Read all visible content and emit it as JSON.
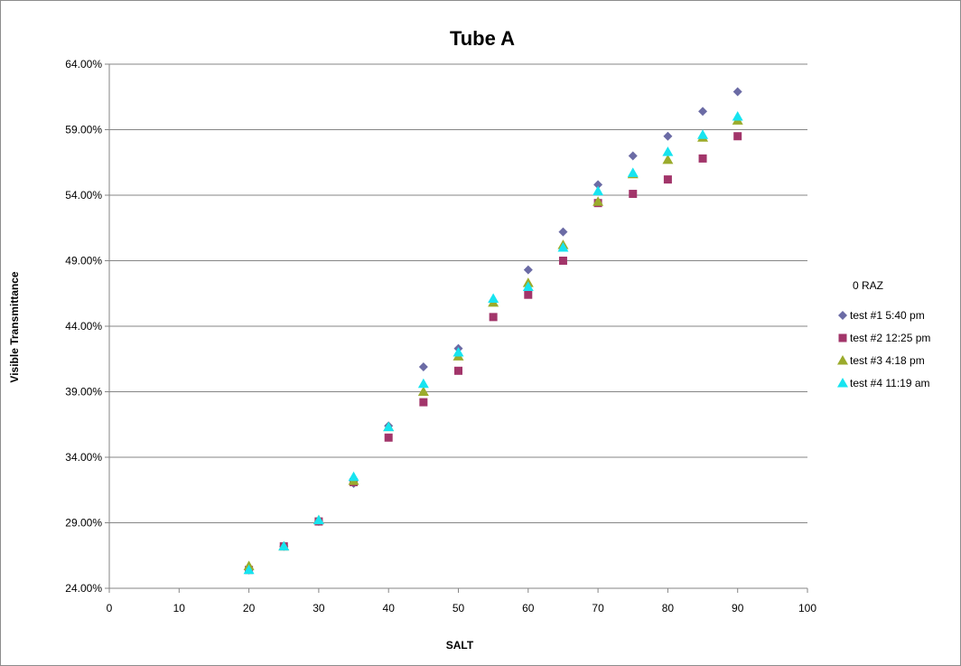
{
  "chart_data": {
    "type": "scatter",
    "title": "Tube A",
    "xlabel": "SALT",
    "ylabel": "Visible Transmittance",
    "xlim": [
      0,
      100
    ],
    "ylim": [
      0.24,
      0.64
    ],
    "x_ticks": [
      0,
      10,
      20,
      30,
      40,
      50,
      60,
      70,
      80,
      90,
      100
    ],
    "x_tick_labels": [
      "0",
      "10",
      "20",
      "30",
      "40",
      "50",
      "60",
      "70",
      "80",
      "90",
      "100"
    ],
    "y_ticks": [
      0.24,
      0.29,
      0.34,
      0.39,
      0.44,
      0.49,
      0.54,
      0.59,
      0.64
    ],
    "y_tick_labels": [
      "24.00%",
      "29.00%",
      "34.00%",
      "39.00%",
      "44.00%",
      "49.00%",
      "54.00%",
      "59.00%",
      "64.00%"
    ],
    "grid": "horizontal",
    "legend_title": "0 RAZ",
    "legend_position": "right",
    "x": [
      20,
      25,
      30,
      35,
      40,
      45,
      50,
      55,
      60,
      65,
      70,
      75,
      80,
      85,
      90
    ],
    "series": [
      {
        "name": "test #1 5:40 pm",
        "marker": "diamond",
        "color": "#6b6ba5",
        "values": [
          0.254,
          0.272,
          0.291,
          0.32,
          0.364,
          0.409,
          0.423,
          0.459,
          0.483,
          0.512,
          0.548,
          0.57,
          0.585,
          0.604,
          0.619
        ]
      },
      {
        "name": "test #2 12:25 pm",
        "marker": "square",
        "color": "#a2356a",
        "values": [
          0.254,
          0.272,
          0.291,
          0.321,
          0.355,
          0.382,
          0.406,
          0.447,
          0.464,
          0.49,
          0.534,
          0.541,
          0.552,
          0.568,
          0.585
        ]
      },
      {
        "name": "test #3 4:18 pm",
        "marker": "triangle",
        "color": "#9bab2c",
        "values": [
          0.257,
          0.272,
          0.292,
          0.322,
          0.363,
          0.39,
          0.417,
          0.458,
          0.473,
          0.502,
          0.535,
          0.556,
          0.567,
          0.584,
          0.597
        ]
      },
      {
        "name": "test #4 11:19 am",
        "marker": "triangle",
        "color": "#17e4f0",
        "values": [
          0.254,
          0.272,
          0.292,
          0.325,
          0.363,
          0.396,
          0.42,
          0.461,
          0.47,
          0.5,
          0.543,
          0.557,
          0.573,
          0.586,
          0.6
        ]
      }
    ]
  }
}
